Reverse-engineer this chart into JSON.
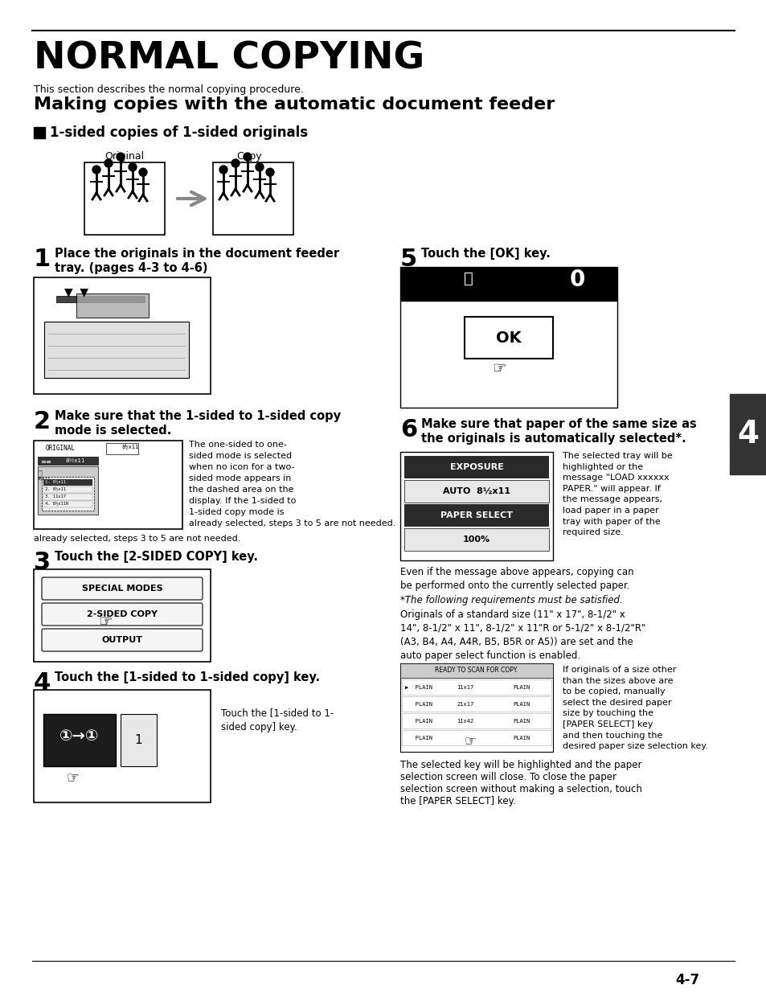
{
  "page_background": "#ffffff",
  "text_color": "#000000",
  "main_title": "NORMAL COPYING",
  "subtitle_text": "This section describes the normal copying procedure.",
  "section_title": "Making copies with the automatic document feeder",
  "subsection_title": "1-sided copies of 1-sided originals",
  "step1_text1": "Place the originals in the document feeder",
  "step1_text2": "tray. (pages 4-3 to 4-6)",
  "step2_text1": "Make sure that the 1-sided to 1-sided copy",
  "step2_text2": "mode is selected.",
  "step2_desc": "The one-sided to one-\nsided mode is selected\nwhen no icon for a two-\nsided mode appears in\nthe dashed area on the\ndisplay. If the 1-sided to\n1-sided copy mode is\nalready selected, steps 3 to 5 are not needed.",
  "step3_text": "Touch the [2-SIDED COPY] key.",
  "step4_text": "Touch the [1-sided to 1-sided copy] key.",
  "step4_desc": "Touch the [1-sided to 1-\nsided copy] key.",
  "step5_text": "Touch the [OK] key.",
  "step6_text1": "Make sure that paper of the same size as",
  "step6_text2": "the originals is automatically selected*.",
  "step6_desc": "The selected tray will be\nhighlighted or the\nmessage \"LOAD xxxxxx\nPAPER.\" will appear. If\nthe message appears,\nload paper in a paper\ntray with paper of the\nrequired size.",
  "para1": "Even if the message above appears, copying can\nbe performed onto the currently selected paper.",
  "note1": "*The following requirements must be satisfied.",
  "para2a": "Originals of a standard size (11\" x 17\", 8-1/2\" x\n14\", 8-1/2\" x 11\", 8-1/2\" x 11\"R or 5-1/2\" x 8-1/2\"R\"",
  "para2b": "(A3, B4, A4, A4R, B5, B5R or A5)) are set and the\nauto paper select function is enabled.",
  "para3": "If originals of a size other\nthan the sizes above are\nto be copied, manually\nselect the desired paper\nsize by touching the\n[PAPER SELECT] key\nand then touching the\ndesired paper size selection key.",
  "para4a": "The selected key will be highlighted and the paper",
  "para4b": "selection screen will close. To close the paper",
  "para4c": "selection screen without making a selection, touch",
  "para4d": "the [PAPER SELECT] key.",
  "page_num": "4-7",
  "tab_num": "4"
}
